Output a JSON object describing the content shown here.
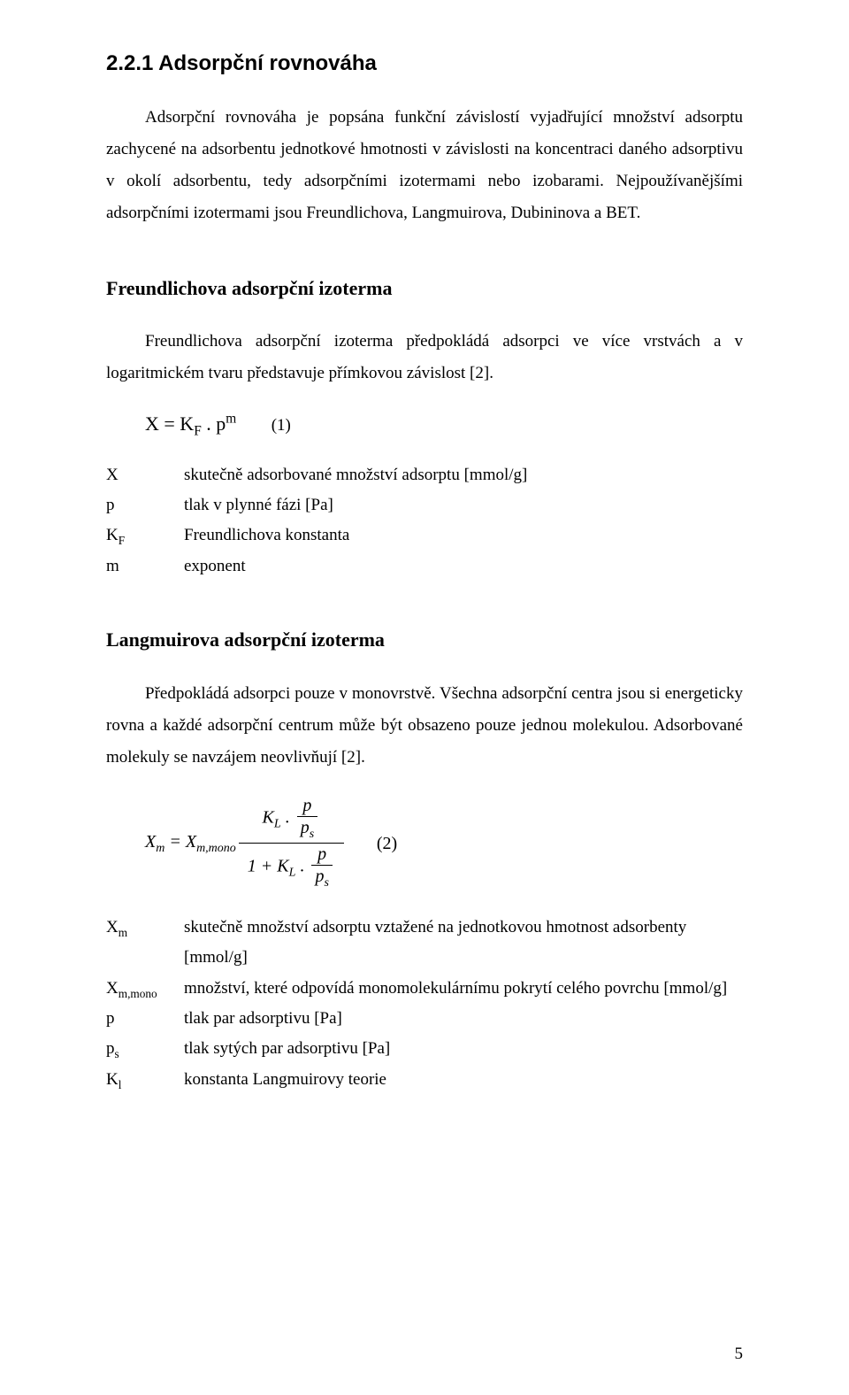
{
  "heading": "2.2.1 Adsorpční rovnováha",
  "para1": "Adsorpční rovnováha je popsána funkční závislostí vyjadřující množství adsorptu zachycené na adsorbentu jednotkové hmotnosti v závislosti na koncentraci daného adsorptivu v okolí adsorbentu, tedy adsorpčními izotermami nebo izobarami. Nejpoužívanějšími adsorpčními izotermami jsou Freundlichova, Langmuirova, Dubininova a BET.",
  "sec1_title": "Freundlichova adsorpční izoterma",
  "sec1_para": "Freundlichova adsorpční izoterma předpokládá adsorpci ve více vrstvách a v logaritmickém tvaru představuje přímkovou závislost [2].",
  "eq1": {
    "lhs_a": "X = K",
    "lhs_sub": "F",
    "lhs_b": " . p",
    "lhs_sup": "m",
    "num": "(1)"
  },
  "defs1": [
    {
      "sym_a": "X",
      "sym_sub": "",
      "desc": "skutečně adsorbované množství adsorptu [mmol/g]"
    },
    {
      "sym_a": "p",
      "sym_sub": "",
      "desc": "tlak v plynné fázi [Pa]"
    },
    {
      "sym_a": "K",
      "sym_sub": "F",
      "desc": "Freundlichova konstanta"
    },
    {
      "sym_a": "m",
      "sym_sub": "",
      "desc": "exponent"
    }
  ],
  "sec2_title": "Langmuirova adsorpční izoterma",
  "sec2_para": "Předpokládá adsorpci pouze v monovrstvě. Všechna adsorpční centra jsou si energeticky rovna a každé adsorpční centrum může být obsazeno pouze jednou molekulou. Adsorbované molekuly se navzájem neovlivňují [2].",
  "eq2": {
    "Xm": "X",
    "Xm_sub": "m",
    "eq": " = ",
    "Xmono": "X",
    "Xmono_sub": "m,mono",
    "K": "K",
    "K_sub": "L",
    "dot": " . ",
    "p": "p",
    "ps": "p",
    "ps_sub": "s",
    "one_plus": "1 + ",
    "num": "(2)"
  },
  "defs2": [
    {
      "sym_a": "X",
      "sym_sub": "m",
      "desc": "skutečně množství adsorptu vztažené na jednotkovou hmotnost adsorbenty [mmol/g]"
    },
    {
      "sym_a": "X",
      "sym_sub": "m,mono",
      "desc": "množství, které odpovídá monomolekulárnímu pokrytí celého povrchu [mmol/g]"
    },
    {
      "sym_a": "p",
      "sym_sub": "",
      "desc": "tlak par adsorptivu [Pa]"
    },
    {
      "sym_a": "p",
      "sym_sub": "s",
      "desc": "tlak sytých par adsorptivu [Pa]"
    },
    {
      "sym_a": "K",
      "sym_sub": "l",
      "desc": "konstanta Langmuirovy teorie"
    }
  ],
  "page_number": "5"
}
